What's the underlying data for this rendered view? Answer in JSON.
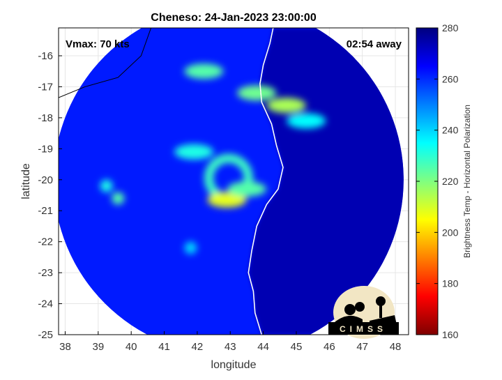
{
  "chart_data": {
    "type": "heatmap",
    "title": "Cheneso: 24-Jan-2023 23:00:00",
    "xlabel": "longitude",
    "ylabel": "latitude",
    "xlim": [
      37.8,
      48.4
    ],
    "ylim": [
      -25,
      -15.1
    ],
    "xticks": [
      38,
      39,
      40,
      41,
      42,
      43,
      44,
      45,
      46,
      47,
      48
    ],
    "yticks": [
      -16,
      -17,
      -18,
      -19,
      -20,
      -21,
      -22,
      -23,
      -24,
      -25
    ],
    "grid": true,
    "annotations": {
      "vmax": "Vmax: 70 kts",
      "time_away": "02:54 away"
    },
    "colorbar": {
      "label": "Brightness Temp - Horizontal Polarization",
      "range": [
        160,
        280
      ],
      "ticks": [
        160,
        180,
        200,
        220,
        240,
        260,
        280
      ],
      "colormap": [
        "#7f0000",
        "#ff0000",
        "#ff8000",
        "#ffff00",
        "#80ff80",
        "#00ffff",
        "#0080ff",
        "#0000ff",
        "#00007f"
      ]
    },
    "swath": {
      "center": [
        42.95,
        -20.0
      ],
      "radius_deg": 5.3,
      "background_temp": 262,
      "east_background_temp": 274
    },
    "storm_features": [
      {
        "kind": "eyewall",
        "center": [
          42.95,
          -19.95
        ],
        "radius_deg": 0.6,
        "temp": 228
      },
      {
        "kind": "rainband",
        "lon": 42.9,
        "lat": -20.65,
        "temp": 208
      },
      {
        "kind": "rainband",
        "lon": 43.5,
        "lat": -20.3,
        "temp": 225
      },
      {
        "kind": "rainband",
        "lon": 41.9,
        "lat": -19.1,
        "temp": 232
      },
      {
        "kind": "rainband",
        "lon": 42.2,
        "lat": -16.5,
        "temp": 225
      },
      {
        "kind": "rainband",
        "lon": 43.8,
        "lat": -17.2,
        "temp": 222
      },
      {
        "kind": "rainband",
        "lon": 44.7,
        "lat": -17.6,
        "temp": 215
      },
      {
        "kind": "rainband",
        "lon": 45.3,
        "lat": -18.1,
        "temp": 235
      },
      {
        "kind": "cell",
        "lon": 39.6,
        "lat": -20.6,
        "temp": 225
      },
      {
        "kind": "cell",
        "lon": 39.25,
        "lat": -20.2,
        "temp": 232
      },
      {
        "kind": "cell",
        "lon": 41.8,
        "lat": -22.2,
        "temp": 240
      }
    ],
    "logo_text": "CIMSS"
  }
}
